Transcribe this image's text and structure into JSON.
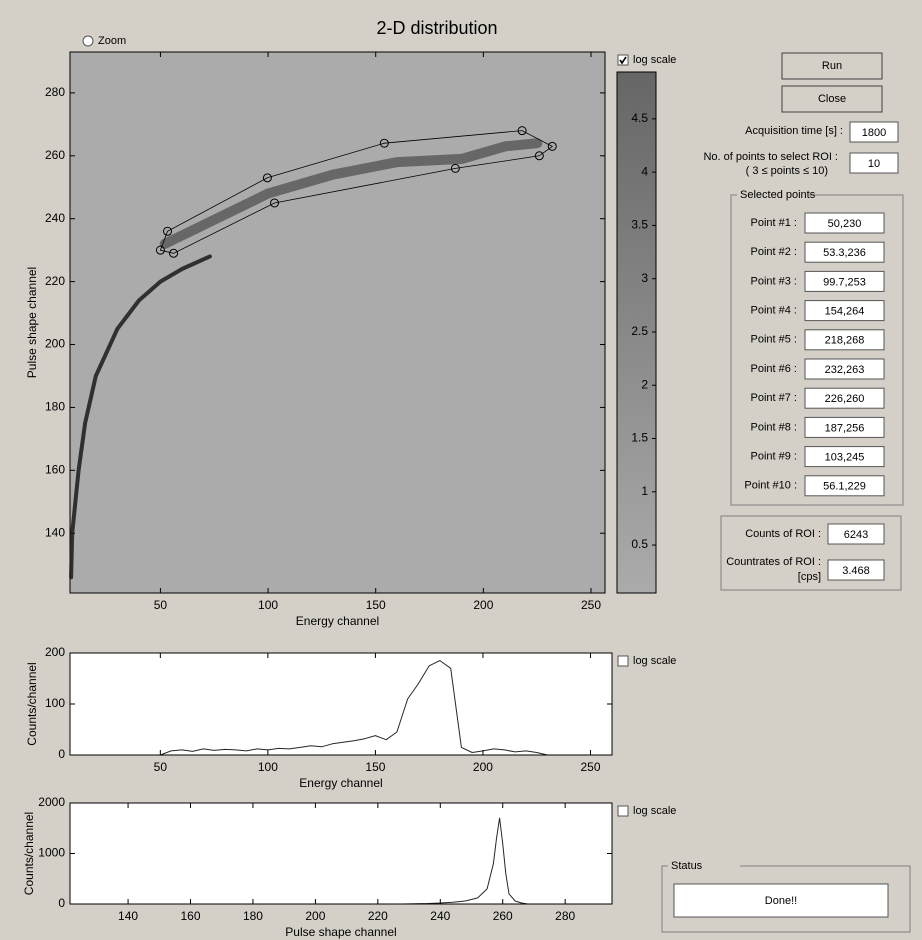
{
  "title": "2-D distribution",
  "zoom": {
    "label": "Zoom",
    "checked": false
  },
  "chart_data": [
    {
      "type": "density",
      "xlabel": "Energy channel",
      "ylabel": "Pulse shape channel",
      "xlim": [
        8,
        256.5
      ],
      "ylim": [
        121,
        293
      ],
      "xticks": [
        50,
        100,
        150,
        200,
        250
      ],
      "yticks": [
        140,
        160,
        180,
        200,
        220,
        240,
        260,
        280
      ],
      "series": [
        {
          "color": "#1a1a1a",
          "x": [
            8.5,
            9,
            12,
            15,
            20,
            30,
            40,
            50,
            60,
            73
          ],
          "values": [
            126,
            140,
            160,
            175,
            190,
            205,
            214,
            220,
            224,
            228
          ]
        },
        {
          "color": "#5a5a5a",
          "x": [
            52,
            70,
            100,
            130,
            160,
            190,
            210,
            225
          ],
          "values": [
            232,
            238,
            248,
            254,
            258,
            259,
            263,
            264
          ]
        }
      ],
      "roi": {
        "x": [
          50,
          53.3,
          99.7,
          154,
          218,
          232,
          226,
          187,
          103,
          56.1
        ],
        "y": [
          230,
          236,
          253,
          264,
          268,
          263,
          260,
          256,
          245,
          229
        ]
      },
      "colorbar": {
        "lim": [
          0.05,
          4.94
        ],
        "ticks": [
          0.5,
          1,
          1.5,
          2,
          2.5,
          3,
          3.5,
          4,
          4.5
        ],
        "log_scale": true,
        "log_scale_label": "log scale"
      }
    },
    {
      "type": "line",
      "xlabel": "Energy channel",
      "ylabel": "Counts/channel",
      "xlim": [
        8,
        260
      ],
      "ylim": [
        0,
        200
      ],
      "xticks": [
        50,
        100,
        150,
        200,
        250
      ],
      "yticks": [
        0,
        100,
        200
      ],
      "log_scale": false,
      "log_scale_label": "log scale",
      "series": [
        {
          "color": "#000000",
          "x": [
            50,
            55,
            60,
            65,
            70,
            75,
            80,
            85,
            90,
            95,
            100,
            105,
            110,
            115,
            120,
            125,
            130,
            135,
            140,
            145,
            150,
            155,
            160,
            165,
            170,
            175,
            180,
            185,
            190,
            195,
            200,
            205,
            210,
            215,
            220,
            225,
            230
          ],
          "values": [
            0,
            8,
            10,
            7,
            12,
            9,
            11,
            10,
            8,
            12,
            10,
            13,
            12,
            15,
            18,
            16,
            22,
            25,
            28,
            32,
            38,
            30,
            45,
            110,
            140,
            175,
            185,
            170,
            15,
            5,
            8,
            12,
            10,
            6,
            8,
            5,
            0
          ]
        }
      ]
    },
    {
      "type": "line",
      "xlabel": "Pulse shape channel",
      "ylabel": "Counts/channel",
      "xlim": [
        121.4,
        295
      ],
      "ylim": [
        0,
        2000
      ],
      "xticks": [
        140,
        160,
        180,
        200,
        220,
        240,
        260,
        280
      ],
      "yticks": [
        0,
        1000,
        2000
      ],
      "log_scale": false,
      "log_scale_label": "log scale",
      "series": [
        {
          "color": "#000000",
          "x": [
            228,
            232,
            236,
            240,
            244,
            248,
            252,
            255,
            257,
            258,
            259,
            260,
            261,
            262,
            264,
            266,
            268
          ],
          "values": [
            0,
            5,
            10,
            20,
            35,
            60,
            120,
            300,
            800,
            1300,
            1700,
            1200,
            600,
            200,
            60,
            20,
            0
          ]
        }
      ]
    }
  ],
  "controls": {
    "run": "Run",
    "close": "Close",
    "acquisition": {
      "label": "Acquisition time [s] :",
      "value": 1800
    },
    "points": {
      "label": [
        "No. of points to select ROI :",
        "( 3 ≤ points ≤ 10)"
      ],
      "value": 10
    },
    "selected": {
      "title": "Selected points",
      "rows": [
        [
          "Point #1 :",
          "50,230"
        ],
        [
          "Point #2 :",
          "53.3,236"
        ],
        [
          "Point #3 :",
          "99.7,253"
        ],
        [
          "Point #4 :",
          "154,264"
        ],
        [
          "Point #5 :",
          "218,268"
        ],
        [
          "Point #6 :",
          "232,263"
        ],
        [
          "Point #7 :",
          "226,260"
        ],
        [
          "Point #8 :",
          "187,256"
        ],
        [
          "Point #9 :",
          "103,245"
        ],
        [
          "Point #10 :",
          "56.1,229"
        ]
      ]
    },
    "counts": {
      "label": "Counts of ROI :",
      "value": 6243
    },
    "countrate": {
      "label": [
        "Countrates of ROI :",
        "[cps]"
      ],
      "value": 3.468
    },
    "status": {
      "title": "Status",
      "value": "Done!!"
    }
  }
}
